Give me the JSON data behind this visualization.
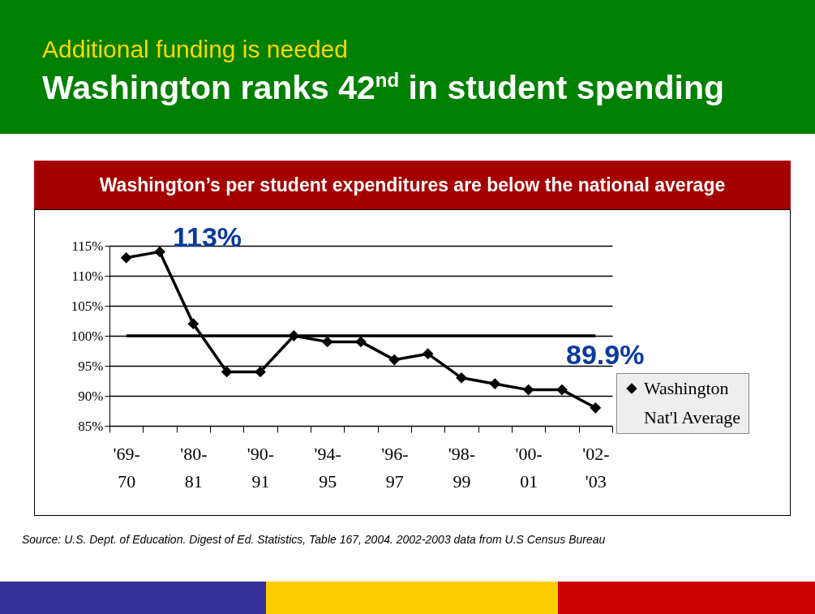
{
  "chart_data": {
    "type": "line",
    "title": "Washington ranks 42$^{nd}$ in student spending",
    "subtitle": "Additional funding is needed",
    "annotations": [
      "Washington’s per student expenditures are below the national average",
      "113%",
      "89.9%",
      "Source: U.S. Dept. of Education. Digest of Ed. Statistics, Table 167, 2004. 2002-2003 data from U.S Census Bureau"
    ],
    "categories": [
      "'69-\n70",
      null,
      "'80-\n81",
      null,
      "'90-\n91",
      null,
      "'94-\n95",
      null,
      "'96-\n97",
      null,
      "'98-\n99",
      null,
      "'00-\n01",
      null,
      "'02-\n'03"
    ],
    "series": [
      {
        "name": "Washington",
        "color": "#000000",
        "marker": "diamond",
        "values": [
          113,
          114,
          102,
          94,
          94,
          100,
          99,
          99,
          96,
          97,
          93,
          92,
          91,
          91,
          88
        ]
      },
      {
        "name": "Nat'l Average",
        "color": "#000000",
        "marker": "none",
        "values": [
          100,
          100,
          100,
          100,
          100,
          100,
          100,
          100,
          100,
          100,
          100,
          100,
          100,
          100,
          100
        ]
      }
    ],
    "ylim": [
      85,
      115
    ],
    "yticks": [
      {
        "value": 85,
        "label": "85%"
      },
      {
        "value": 90,
        "label": "90%"
      },
      {
        "value": 95,
        "label": "95%"
      },
      {
        "value": 100,
        "label": "100%"
      },
      {
        "value": 105,
        "label": "105%"
      },
      {
        "value": 110,
        "label": "110%"
      },
      {
        "value": 115,
        "label": "115%"
      }
    ],
    "grid": "y",
    "legend": "right",
    "line_style": "solid"
  }
}
